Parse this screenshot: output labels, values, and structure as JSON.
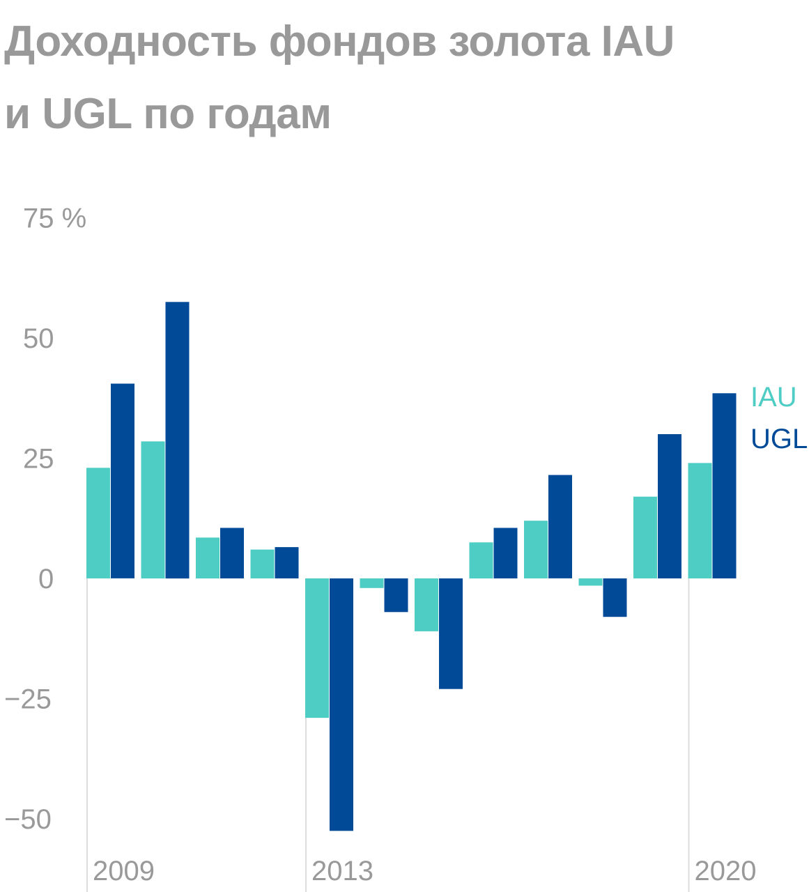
{
  "title": {
    "line1": "Доходность фондов золота IAU",
    "line2": "и UGL по годам"
  },
  "colors": {
    "iau": "#4ecdc4",
    "ugl": "#004a97",
    "text_gray": "#999999",
    "gridline": "#dddddd",
    "background": "#ffffff"
  },
  "chart_data": {
    "type": "bar",
    "title": "Доходность фондов золота IAU и UGL по годам",
    "xlabel": "",
    "ylabel": "",
    "unit": "%",
    "categories": [
      "2009",
      "2010",
      "2011",
      "2012",
      "2013",
      "2014",
      "2015",
      "2016",
      "2017",
      "2018",
      "2019",
      "2020"
    ],
    "x_tick_labels": [
      {
        "category": "2009",
        "label": "2009"
      },
      {
        "category": "2013",
        "label": "2013"
      },
      {
        "category": "2020",
        "label": "2020"
      }
    ],
    "y_ticks": [
      {
        "value": 75,
        "label": "75 %"
      },
      {
        "value": 50,
        "label": "50"
      },
      {
        "value": 25,
        "label": "25"
      },
      {
        "value": 0,
        "label": "0"
      },
      {
        "value": -25,
        "label": "−25"
      },
      {
        "value": -50,
        "label": "−50"
      }
    ],
    "ylim": [
      -60,
      75
    ],
    "grid": false,
    "legend_position": "right",
    "series": [
      {
        "name": "IAU",
        "color": "#4ecdc4",
        "values": [
          23.0,
          28.5,
          8.5,
          6.0,
          -29.0,
          -2.0,
          -11.0,
          7.5,
          12.0,
          -1.5,
          17.0,
          24.0
        ]
      },
      {
        "name": "UGL",
        "color": "#004a97",
        "values": [
          40.5,
          57.5,
          10.5,
          6.5,
          -52.5,
          -7.0,
          -23.0,
          10.5,
          21.5,
          -8.0,
          30.0,
          38.5
        ]
      }
    ]
  }
}
